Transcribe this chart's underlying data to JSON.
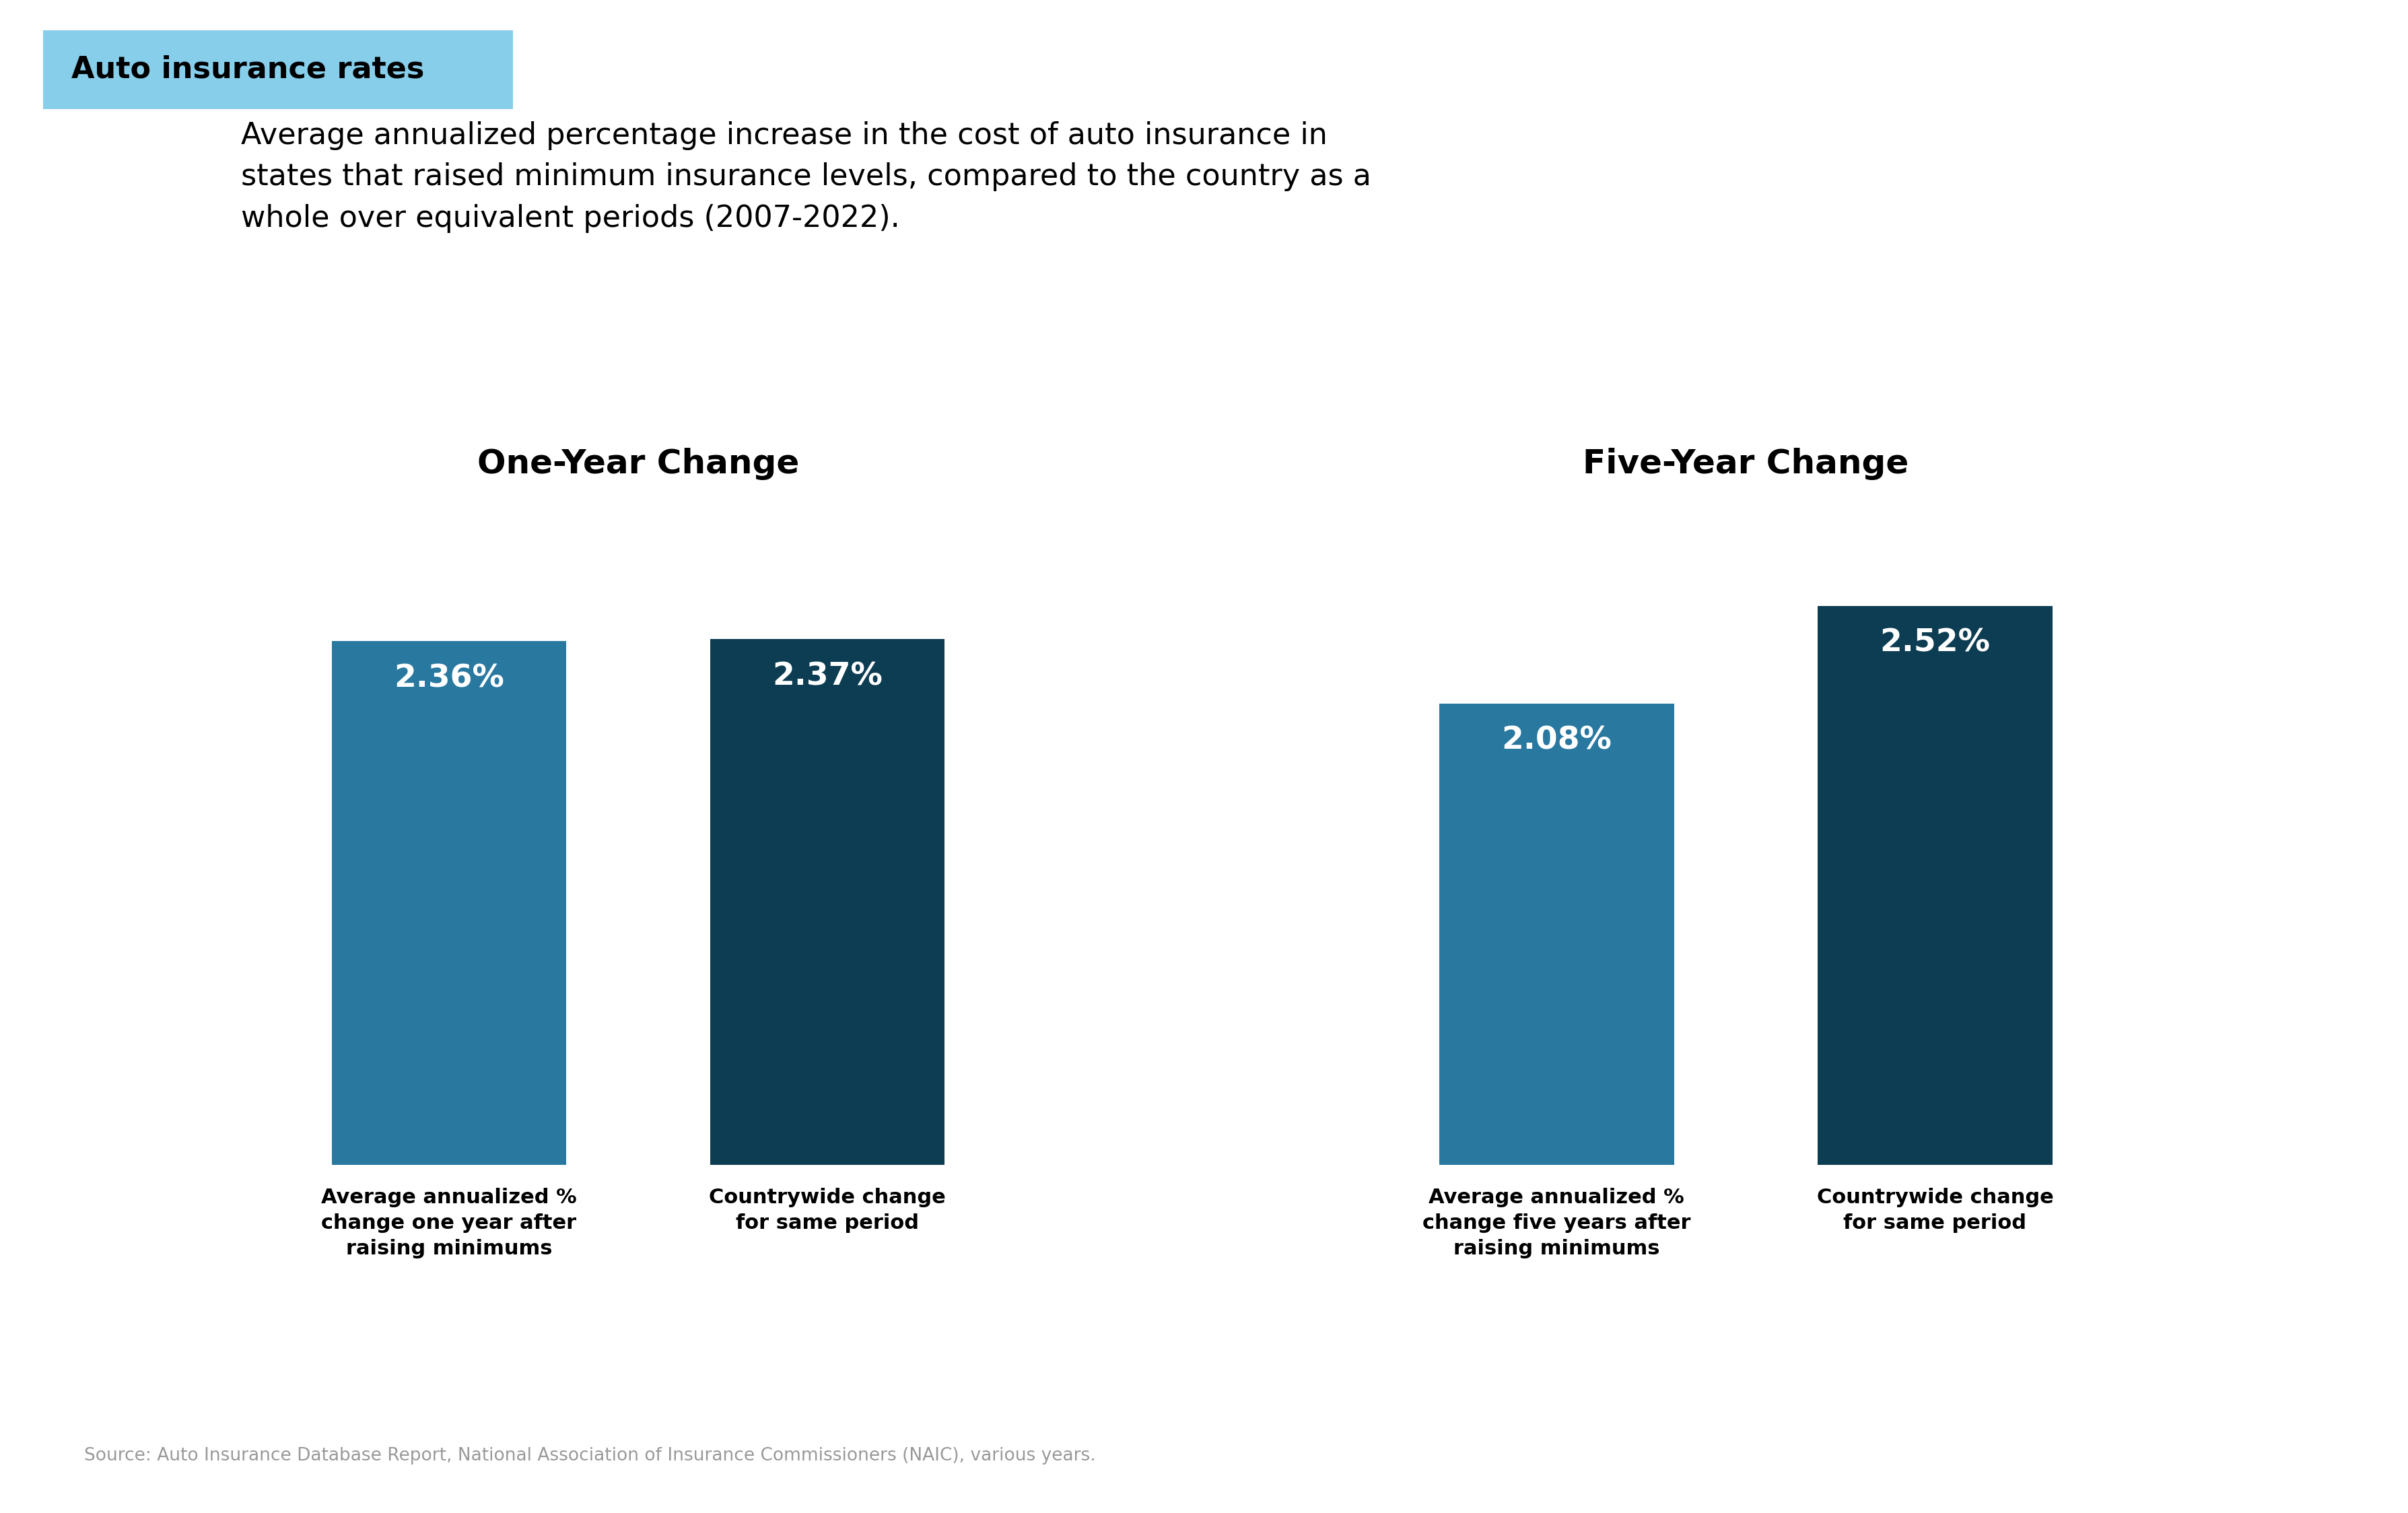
{
  "title_tag": "Auto insurance rates",
  "title_tag_bg": "#87CEEB",
  "subtitle": "Average annualized percentage increase in the cost of auto insurance in\nstates that raised minimum insurance levels, compared to the country as a\nwhole over equivalent periods (2007-2022).",
  "left_group_title": "One-Year Change",
  "right_group_title": "Five-Year Change",
  "left_bars": [
    {
      "label": "Average annualized %\nchange one year after\nraising minimums",
      "value": 2.36,
      "pct_text": "2.36%",
      "color": "#2878a0"
    },
    {
      "label": "Countrywide change\nfor same period",
      "value": 2.37,
      "pct_text": "2.37%",
      "color": "#0d3d52"
    }
  ],
  "right_bars": [
    {
      "label": "Average annualized %\nchange five years after\nraising minimums",
      "value": 2.08,
      "pct_text": "2.08%",
      "color": "#2878a0"
    },
    {
      "label": "Countrywide change\nfor same period",
      "value": 2.52,
      "pct_text": "2.52%",
      "color": "#0d3d52"
    }
  ],
  "source_text": "Source: Auto Insurance Database Report, National Association of Insurance Commissioners (NAIC), various years.",
  "bg_color": "#ffffff",
  "bar_value_fontsize": 34,
  "bar_label_fontsize": 22,
  "group_title_fontsize": 36,
  "subtitle_fontsize": 32,
  "tag_fontsize": 32,
  "source_fontsize": 19,
  "ylim": [
    0,
    3.0
  ]
}
